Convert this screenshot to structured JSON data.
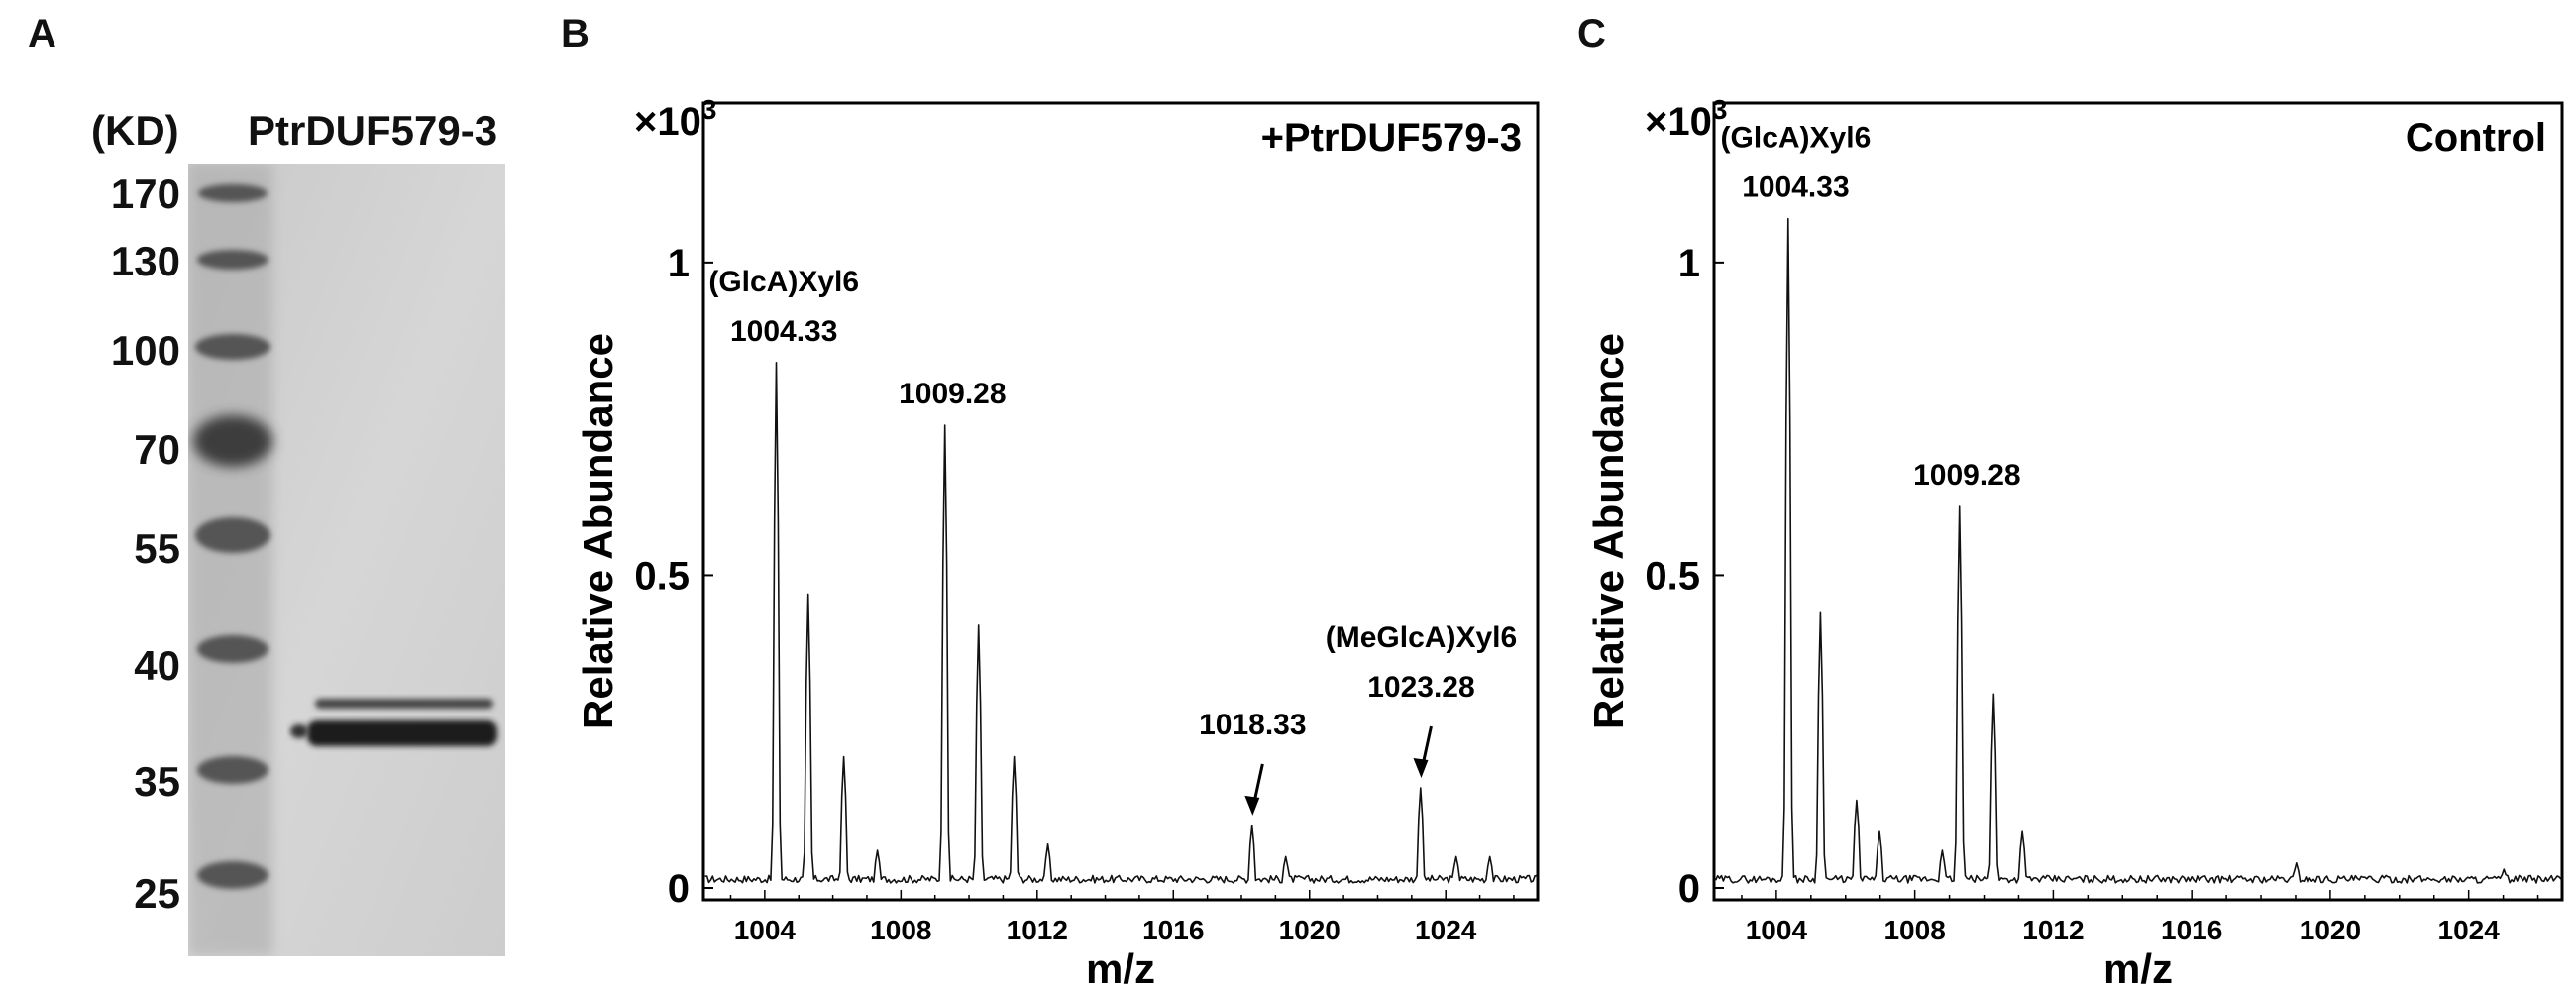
{
  "panels": {
    "a": {
      "letter": "A",
      "kd_header": "(KD)",
      "lane_title": "PtrDUF579-3",
      "markers": [
        "170",
        "130",
        "100",
        "70",
        "55",
        "40",
        "35",
        "25"
      ]
    },
    "b": {
      "letter": "B"
    },
    "c": {
      "letter": "C"
    }
  },
  "chart_data": [
    {
      "type": "line",
      "panel": "B",
      "title": "+PtrDUF579-3",
      "xlabel": "m/z",
      "ylabel": "Relative Abundance",
      "yscale_label": "×10",
      "yscale_exp": "3",
      "xlim": [
        1002.2,
        1026.7
      ],
      "ylim": [
        0,
        1.0
      ],
      "xticks": [
        1004,
        1008,
        1012,
        1016,
        1020,
        1024
      ],
      "yticks": [
        0,
        0.5,
        1
      ],
      "ytick_labels": [
        "0",
        "0.5",
        "1"
      ],
      "peaks": [
        {
          "mz": 1004.33,
          "intensity": 0.84
        },
        {
          "mz": 1005.3,
          "intensity": 0.47
        },
        {
          "mz": 1006.3,
          "intensity": 0.21
        },
        {
          "mz": 1007.3,
          "intensity": 0.06
        },
        {
          "mz": 1009.28,
          "intensity": 0.74
        },
        {
          "mz": 1010.3,
          "intensity": 0.42
        },
        {
          "mz": 1011.3,
          "intensity": 0.21
        },
        {
          "mz": 1012.3,
          "intensity": 0.07
        },
        {
          "mz": 1018.33,
          "intensity": 0.1
        },
        {
          "mz": 1019.3,
          "intensity": 0.05
        },
        {
          "mz": 1023.28,
          "intensity": 0.16
        },
        {
          "mz": 1024.3,
          "intensity": 0.05
        },
        {
          "mz": 1025.3,
          "intensity": 0.05
        }
      ],
      "annotations": [
        {
          "lines": [
            "(GlcA)Xyl6",
            "1004.33"
          ],
          "mz": 1004.33
        },
        {
          "lines": [
            "1009.28"
          ],
          "mz": 1009.28
        },
        {
          "lines": [
            "1018.33"
          ],
          "mz": 1018.33,
          "arrow": true
        },
        {
          "lines": [
            "(MeGlcA)Xyl6",
            "1023.28"
          ],
          "mz": 1023.28,
          "arrow": true
        }
      ]
    },
    {
      "type": "line",
      "panel": "C",
      "title": "Control",
      "xlabel": "m/z",
      "ylabel": "Relative Abundance",
      "yscale_label": "×10",
      "yscale_exp": "3",
      "xlim": [
        1002.2,
        1026.7
      ],
      "ylim": [
        0,
        1.0
      ],
      "xticks": [
        1004,
        1008,
        1012,
        1016,
        1020,
        1024
      ],
      "yticks": [
        0,
        0.5,
        1
      ],
      "ytick_labels": [
        "0",
        "0.5",
        "1"
      ],
      "peaks": [
        {
          "mz": 1004.33,
          "intensity": 1.07
        },
        {
          "mz": 1005.3,
          "intensity": 0.44
        },
        {
          "mz": 1006.3,
          "intensity": 0.14
        },
        {
          "mz": 1007.0,
          "intensity": 0.09
        },
        {
          "mz": 1008.8,
          "intensity": 0.06
        },
        {
          "mz": 1009.28,
          "intensity": 0.61
        },
        {
          "mz": 1010.3,
          "intensity": 0.31
        },
        {
          "mz": 1011.1,
          "intensity": 0.09
        },
        {
          "mz": 1019.0,
          "intensity": 0.04
        },
        {
          "mz": 1025.0,
          "intensity": 0.03
        }
      ],
      "annotations": [
        {
          "lines": [
            "(GlcA)Xyl6",
            "1004.33"
          ],
          "mz": 1004.33
        },
        {
          "lines": [
            "1009.28"
          ],
          "mz": 1009.28
        }
      ]
    }
  ]
}
